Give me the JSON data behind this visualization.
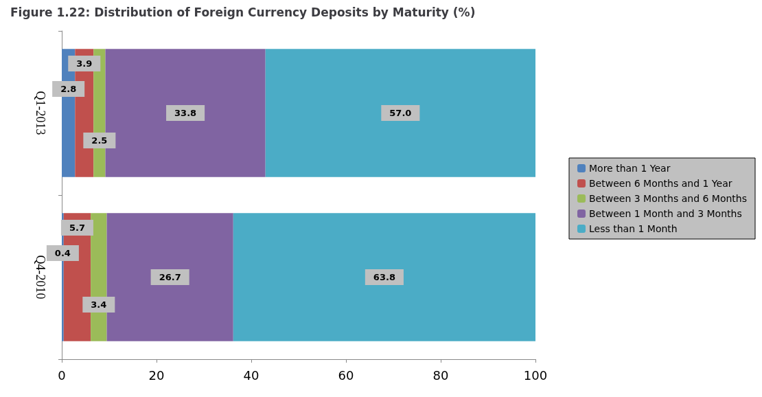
{
  "chart_data": {
    "type": "bar",
    "orientation": "horizontal",
    "stacked": true,
    "title": "Figure 1.22: Distribution of Foreign Currency Deposits by Maturity (%)",
    "categories": [
      "Q1-2013",
      "Q4-2010"
    ],
    "series": [
      {
        "name": "More than 1 Year",
        "color": "#4f81bd",
        "values": [
          2.8,
          0.4
        ]
      },
      {
        "name": "Between 6 Months and 1 Year",
        "color": "#c0504d",
        "values": [
          3.9,
          5.7
        ]
      },
      {
        "name": "Between 3 Months and 6 Months",
        "color": "#9bbb59",
        "values": [
          2.5,
          3.4
        ]
      },
      {
        "name": "Between 1 Month and 3 Months",
        "color": "#8064a2",
        "values": [
          33.8,
          26.7
        ]
      },
      {
        "name": "Less than 1 Month",
        "color": "#4bacc6",
        "values": [
          57.0,
          63.8
        ],
        "value_labels": [
          "57.0",
          "63.8"
        ]
      }
    ],
    "xlim": [
      0,
      100
    ],
    "xticks": [
      0,
      20,
      40,
      60,
      80,
      100
    ],
    "data_labels": true,
    "legend": "right",
    "grid": false
  }
}
